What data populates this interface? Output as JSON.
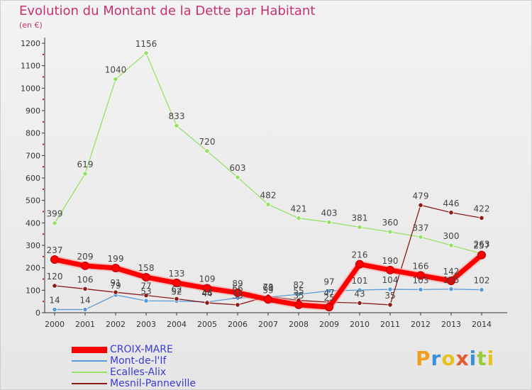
{
  "title": "Evolution du Montant de la Dette par Habitant",
  "unit_label": "(en €)",
  "brand": "Proxiti",
  "chart_data": {
    "type": "line",
    "x": [
      "2000",
      "2001",
      "2002",
      "2003",
      "2004",
      "2005",
      "2006",
      "2007",
      "2008",
      "2009",
      "2010",
      "2011",
      "2012",
      "2013",
      "2014"
    ],
    "ylim": [
      0,
      1200
    ],
    "yticks": [
      0,
      100,
      200,
      300,
      400,
      500,
      600,
      700,
      800,
      900,
      1000,
      1100,
      1200
    ],
    "grid": false,
    "legend_position": "bottom-left",
    "series": [
      {
        "name": "CROIX-MARE",
        "color": "#ff0000",
        "emphasis": true,
        "values": [
          237,
          209,
          199,
          158,
          133,
          109,
          89,
          59,
          35,
          25,
          216,
          190,
          166,
          142,
          257
        ]
      },
      {
        "name": "Mont-de-l'If",
        "color": "#5b9bd5",
        "values": [
          14,
          14,
          79,
          53,
          52,
          48,
          66,
          69,
          82,
          97,
          101,
          104,
          103,
          105,
          102
        ]
      },
      {
        "name": "Ecalles-Alix",
        "color": "#99e066",
        "values": [
          399,
          619,
          1040,
          1156,
          833,
          720,
          603,
          482,
          421,
          403,
          381,
          360,
          337,
          300,
          263
        ]
      },
      {
        "name": "Mesnil-Panneville",
        "color": "#8b1a1a",
        "values": [
          120,
          106,
          91,
          77,
          62,
          44,
          35,
          73,
          55,
          47,
          43,
          35,
          479,
          446,
          422
        ]
      }
    ]
  }
}
